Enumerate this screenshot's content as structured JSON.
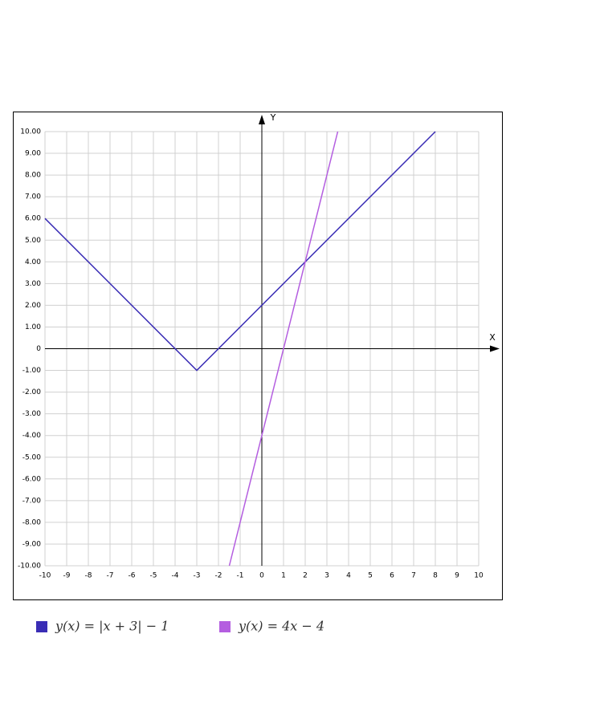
{
  "chart_data": {
    "type": "line",
    "xlabel": "X",
    "ylabel": "Y",
    "xlim": [
      -10,
      10
    ],
    "ylim": [
      -10,
      10
    ],
    "xticks": [
      -10,
      -9,
      -8,
      -7,
      -6,
      -5,
      -4,
      -3,
      -2,
      -1,
      0,
      1,
      2,
      3,
      4,
      5,
      6,
      7,
      8,
      9,
      10
    ],
    "yticks": [
      {
        "value": 10,
        "label": "10.00"
      },
      {
        "value": 9,
        "label": "9.00"
      },
      {
        "value": 8,
        "label": "8.00"
      },
      {
        "value": 7,
        "label": "7.00"
      },
      {
        "value": 6,
        "label": "6.00"
      },
      {
        "value": 5,
        "label": "5.00"
      },
      {
        "value": 4,
        "label": "4.00"
      },
      {
        "value": 3,
        "label": "3.00"
      },
      {
        "value": 2,
        "label": "2.00"
      },
      {
        "value": 1,
        "label": "1.00"
      },
      0,
      {
        "value": -1,
        "label": "-1.00"
      },
      {
        "value": -2,
        "label": "-2.00"
      },
      {
        "value": -3,
        "label": "-3.00"
      },
      {
        "value": -4,
        "label": "-4.00"
      },
      {
        "value": -5,
        "label": "-5.00"
      },
      {
        "value": -6,
        "label": "-6.00"
      },
      {
        "value": -7,
        "label": "-7.00"
      },
      {
        "value": -8,
        "label": "-8.00"
      },
      {
        "value": -9,
        "label": "-9.00"
      },
      {
        "value": -10,
        "label": "-10.00"
      }
    ],
    "grid": true,
    "series": [
      {
        "name": "y(x) = |x + 3| − 1",
        "color": "#3a2db5",
        "x": [
          -10,
          -3,
          8
        ],
        "values": [
          6,
          -1,
          10
        ]
      },
      {
        "name": "y(x) = 4x − 4",
        "color": "#b45ee0",
        "x": [
          -1.5,
          3.5
        ],
        "values": [
          -10,
          10
        ]
      }
    ]
  }
}
